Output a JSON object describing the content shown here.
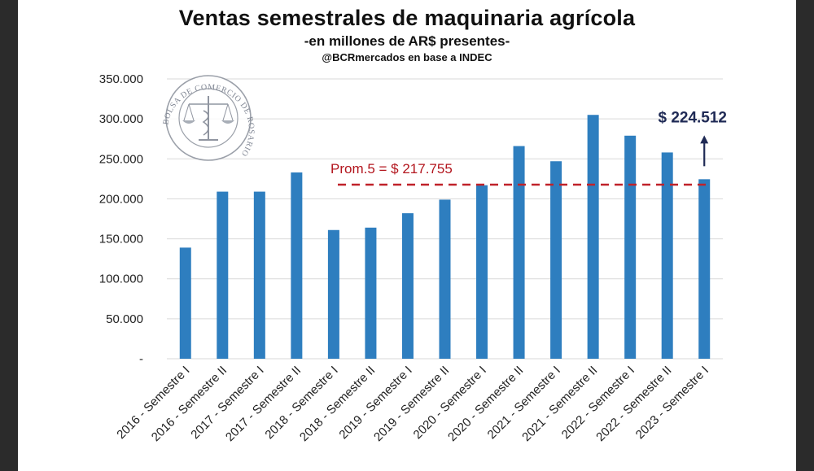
{
  "title": "Ventas semestrales de maquinaria agrícola",
  "subtitle": "-en millones de AR$ presentes-",
  "source": "@BCRmercados en base a INDEC",
  "seal_text": "BOLSA DE COMERCIO DE ROSARIO",
  "colors": {
    "bar": "#2e7ebf",
    "average_line": "#c0222a",
    "arrow": "#1f2a55",
    "grid": "#d9d9d9",
    "side_bars": "#2b2b2b"
  },
  "chart_data": {
    "type": "bar",
    "categories": [
      "2016 - Semestre I",
      "2016 - Semestre II",
      "2017 - Semestre I",
      "2017 - Semestre II",
      "2018 - Semestre I",
      "2018 - Semestre II",
      "2019 - Semestre I",
      "2019 - Semestre II",
      "2020 - Semestre I",
      "2020 - Semestre II",
      "2021 - Semestre I",
      "2021 - Semestre II",
      "2022 - Semestre I",
      "2022 - Semestre II",
      "2023 - Semestre I"
    ],
    "values": [
      139000,
      209000,
      209000,
      233000,
      161000,
      164000,
      182000,
      199000,
      217000,
      266000,
      247000,
      305000,
      279000,
      258000,
      224512
    ],
    "ylim": [
      0,
      350000
    ],
    "yticks": [
      0,
      50000,
      100000,
      150000,
      200000,
      250000,
      300000,
      350000
    ],
    "ytick_labels": [
      "-",
      "50.000",
      "100.000",
      "150.000",
      "200.000",
      "250.000",
      "300.000",
      "350.000"
    ],
    "grid": true,
    "legend": "none",
    "average_line": {
      "value": 217755,
      "label": "Prom.5 = $ 217.755"
    },
    "last_value_annotation": {
      "value": 224512,
      "label": "$ 224.512"
    }
  }
}
